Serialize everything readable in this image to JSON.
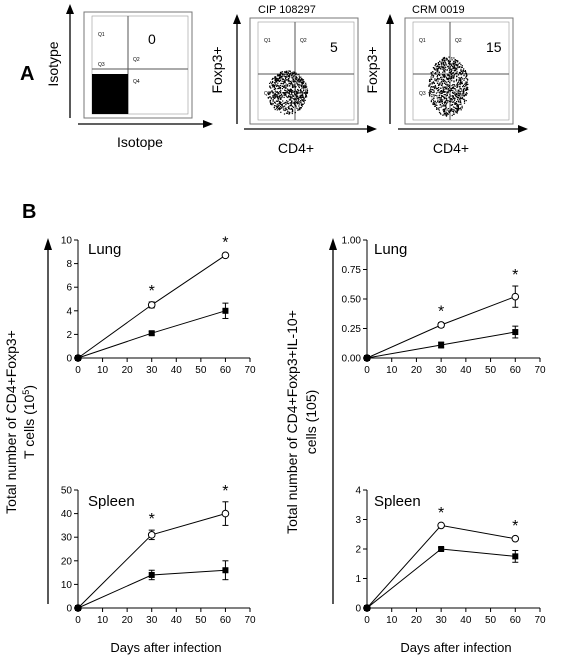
{
  "panel_a": {
    "letter": "A",
    "plots": [
      {
        "title": "",
        "x_label": "Isotope",
        "y_label": "Isotype",
        "value": "0",
        "quadrants": [
          "Q1",
          "Q2",
          "Q3",
          "Q4"
        ]
      },
      {
        "title": "CIP 108297",
        "x_label": "CD4+",
        "y_label": "Foxp3+",
        "value": "5",
        "quadrants": [
          "Q1",
          "Q2",
          "Q3",
          "Q4"
        ]
      },
      {
        "title": "CRM 0019",
        "x_label": "CD4+",
        "y_label": "Foxp3+",
        "value": "15",
        "quadrants": [
          "Q1",
          "Q2",
          "Q3",
          "Q4"
        ]
      }
    ]
  },
  "panel_b": {
    "letter": "B",
    "left_ylabel_line1": "Total number of CD4+Foxp3+",
    "left_ylabel_line2": "T cells (10",
    "left_ylabel_sup": "5",
    "left_ylabel_end": ")",
    "right_ylabel_line1": "Total number of CD4+Foxp3+IL-10+",
    "right_ylabel_line2": "cells (105)",
    "xlabel": "Days after infection"
  },
  "chart_data": [
    {
      "type": "line",
      "title": "Lung",
      "xlabel": "Days after infection",
      "xlim": [
        0,
        70
      ],
      "ylim": [
        0,
        10
      ],
      "xticks": [
        0,
        10,
        20,
        30,
        40,
        50,
        60,
        70
      ],
      "yticks": [
        0,
        2,
        4,
        6,
        8,
        10
      ],
      "series": [
        {
          "marker": "open-circle",
          "x": [
            0,
            30,
            60
          ],
          "values": [
            0,
            4.5,
            8.7
          ],
          "err": [
            0,
            0.25,
            0.15
          ]
        },
        {
          "marker": "filled-square",
          "x": [
            0,
            30,
            60
          ],
          "values": [
            0,
            2.1,
            4.0
          ],
          "err": [
            0,
            0.15,
            0.65
          ]
        }
      ],
      "asterisks": [
        30,
        60
      ]
    },
    {
      "type": "line",
      "title": "Lung",
      "xlabel": "Days after infection",
      "xlim": [
        0,
        70
      ],
      "ylim": [
        0,
        1.0
      ],
      "xticks": [
        0,
        10,
        20,
        30,
        40,
        50,
        60,
        70
      ],
      "yticks": [
        "0.00",
        "0.25",
        "0.50",
        "0.75",
        "1.00"
      ],
      "series": [
        {
          "marker": "open-circle",
          "x": [
            0,
            30,
            60
          ],
          "values": [
            0,
            0.28,
            0.52
          ],
          "err": [
            0,
            0.02,
            0.09
          ]
        },
        {
          "marker": "filled-square",
          "x": [
            0,
            30,
            60
          ],
          "values": [
            0,
            0.11,
            0.22
          ],
          "err": [
            0,
            0.025,
            0.05
          ]
        }
      ],
      "asterisks": [
        30,
        60
      ]
    },
    {
      "type": "line",
      "title": "Spleen",
      "xlabel": "Days after infection",
      "xlim": [
        0,
        70
      ],
      "ylim": [
        0,
        50
      ],
      "xticks": [
        0,
        10,
        20,
        30,
        40,
        50,
        60,
        70
      ],
      "yticks": [
        0,
        10,
        20,
        30,
        40,
        50
      ],
      "series": [
        {
          "marker": "open-circle",
          "x": [
            0,
            30,
            60
          ],
          "values": [
            0,
            31,
            40
          ],
          "err": [
            0,
            2,
            5
          ]
        },
        {
          "marker": "filled-square",
          "x": [
            0,
            30,
            60
          ],
          "values": [
            0,
            14,
            16
          ],
          "err": [
            0,
            2,
            4
          ]
        }
      ],
      "asterisks": [
        30,
        60
      ]
    },
    {
      "type": "line",
      "title": "Spleen",
      "xlabel": "Days after infection",
      "xlim": [
        0,
        70
      ],
      "ylim": [
        0,
        4
      ],
      "xticks": [
        0,
        10,
        20,
        30,
        40,
        50,
        60,
        70
      ],
      "yticks": [
        0,
        1,
        2,
        3,
        4
      ],
      "series": [
        {
          "marker": "open-circle",
          "x": [
            0,
            30,
            60
          ],
          "values": [
            0,
            2.8,
            2.35
          ],
          "err": [
            0,
            0.05,
            0.05
          ]
        },
        {
          "marker": "filled-square",
          "x": [
            0,
            30,
            60
          ],
          "values": [
            0,
            2.0,
            1.75
          ],
          "err": [
            0,
            0.05,
            0.2
          ]
        }
      ],
      "asterisks": [
        30,
        60
      ]
    }
  ]
}
